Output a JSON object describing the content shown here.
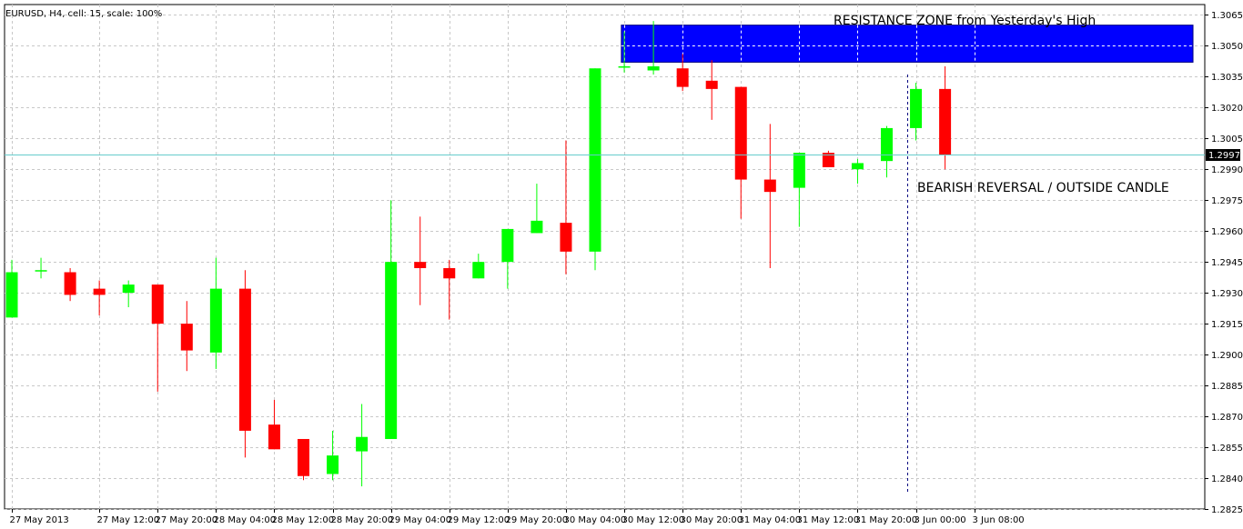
{
  "header": {
    "info": "EURUSD, H4, cell: 15, scale: 100%"
  },
  "colors": {
    "bull": "#00ff00",
    "bear": "#ff0000",
    "grid": "#c8c8c8",
    "zone_fill": "#0000ff",
    "zone_border": "#000080",
    "bid_line": "#66cccc",
    "price_tag_bg": "#000000",
    "price_tag_text": "#ffffff"
  },
  "chart_data": {
    "type": "candlestick",
    "symbol": "EURUSD",
    "timeframe": "H4",
    "ylim": [
      1.2825,
      1.307
    ],
    "y_ticks": [
      "1.3065",
      "1.3050",
      "1.3035",
      "1.3020",
      "1.3005",
      "1.2990",
      "1.2975",
      "1.2960",
      "1.2945",
      "1.2930",
      "1.2915",
      "1.2900",
      "1.2885",
      "1.2870",
      "1.2855",
      "1.2840",
      "1.2825"
    ],
    "x_ticks": [
      {
        "label": "27 May 2013",
        "index": 0
      },
      {
        "label": "27 May 12:00",
        "index": 3
      },
      {
        "label": "27 May 20:00",
        "index": 5
      },
      {
        "label": "28 May 04:00",
        "index": 7
      },
      {
        "label": "28 May 12:00",
        "index": 9
      },
      {
        "label": "28 May 20:00",
        "index": 11
      },
      {
        "label": "29 May 04:00",
        "index": 13
      },
      {
        "label": "29 May 12:00",
        "index": 15
      },
      {
        "label": "29 May 20:00",
        "index": 17
      },
      {
        "label": "30 May 04:00",
        "index": 19
      },
      {
        "label": "30 May 12:00",
        "index": 21
      },
      {
        "label": "30 May 20:00",
        "index": 23
      },
      {
        "label": "31 May 04:00",
        "index": 25
      },
      {
        "label": "31 May 12:00",
        "index": 27
      },
      {
        "label": "31 May 20:00",
        "index": 29
      },
      {
        "label": "3 Jun 00:00",
        "index": 31
      },
      {
        "label": "3 Jun 08:00",
        "index": 33
      }
    ],
    "candles": [
      {
        "o": 1.2918,
        "h": 1.2946,
        "l": 1.2918,
        "c": 1.294
      },
      {
        "o": 1.2941,
        "h": 1.2947,
        "l": 1.2937,
        "c": 1.2941
      },
      {
        "o": 1.294,
        "h": 1.2942,
        "l": 1.2926,
        "c": 1.2929
      },
      {
        "o": 1.2932,
        "h": 1.2936,
        "l": 1.2919,
        "c": 1.2929
      },
      {
        "o": 1.293,
        "h": 1.2936,
        "l": 1.2923,
        "c": 1.2934
      },
      {
        "o": 1.2934,
        "h": 1.2934,
        "l": 1.2882,
        "c": 1.2915
      },
      {
        "o": 1.2915,
        "h": 1.2926,
        "l": 1.2892,
        "c": 1.2902
      },
      {
        "o": 1.2901,
        "h": 1.2947,
        "l": 1.2893,
        "c": 1.2932
      },
      {
        "o": 1.2932,
        "h": 1.2941,
        "l": 1.285,
        "c": 1.2863
      },
      {
        "o": 1.2866,
        "h": 1.2878,
        "l": 1.2854,
        "c": 1.2854
      },
      {
        "o": 1.2859,
        "h": 1.2859,
        "l": 1.2839,
        "c": 1.2841
      },
      {
        "o": 1.2842,
        "h": 1.2863,
        "l": 1.2839,
        "c": 1.2851
      },
      {
        "o": 1.2853,
        "h": 1.2876,
        "l": 1.2836,
        "c": 1.286
      },
      {
        "o": 1.2859,
        "h": 1.2975,
        "l": 1.2859,
        "c": 1.2945
      },
      {
        "o": 1.2945,
        "h": 1.2967,
        "l": 1.2924,
        "c": 1.2942
      },
      {
        "o": 1.2942,
        "h": 1.2946,
        "l": 1.2917,
        "c": 1.2937
      },
      {
        "o": 1.2937,
        "h": 1.2949,
        "l": 1.2937,
        "c": 1.2945
      },
      {
        "o": 1.2945,
        "h": 1.2961,
        "l": 1.2932,
        "c": 1.2961
      },
      {
        "o": 1.2959,
        "h": 1.2983,
        "l": 1.2959,
        "c": 1.2965
      },
      {
        "o": 1.2964,
        "h": 1.3004,
        "l": 1.2939,
        "c": 1.295
      },
      {
        "o": 1.295,
        "h": 1.3039,
        "l": 1.2941,
        "c": 1.3039
      },
      {
        "o": 1.304,
        "h": 1.3057,
        "l": 1.3037,
        "c": 1.304
      },
      {
        "o": 1.3038,
        "h": 1.3062,
        "l": 1.3036,
        "c": 1.304
      },
      {
        "o": 1.3039,
        "h": 1.3046,
        "l": 1.3028,
        "c": 1.303
      },
      {
        "o": 1.3033,
        "h": 1.3043,
        "l": 1.3014,
        "c": 1.3029
      },
      {
        "o": 1.303,
        "h": 1.303,
        "l": 1.2966,
        "c": 1.2985
      },
      {
        "o": 1.2985,
        "h": 1.3012,
        "l": 1.2942,
        "c": 1.2979
      },
      {
        "o": 1.2981,
        "h": 1.2998,
        "l": 1.2962,
        "c": 1.2998
      },
      {
        "o": 1.2998,
        "h": 1.2999,
        "l": 1.2991,
        "c": 1.2991
      },
      {
        "o": 1.299,
        "h": 1.2995,
        "l": 1.2983,
        "c": 1.2993
      },
      {
        "o": 1.2994,
        "h": 1.3011,
        "l": 1.2986,
        "c": 1.301
      },
      {
        "o": 1.301,
        "h": 1.3032,
        "l": 1.3004,
        "c": 1.3029
      },
      {
        "o": 1.3029,
        "h": 1.304,
        "l": 1.299,
        "c": 1.2997
      }
    ],
    "current_price": 1.2997,
    "current_price_label": "1.2997",
    "resistance_zone": {
      "y_top": 1.306,
      "y_bottom": 1.3042,
      "x_start_index": 20.9,
      "x_end_index": 40.5
    },
    "marker_vline_index": 30.7,
    "annotations": [
      {
        "text": "RESISTANCE ZONE from Yesterday's High"
      },
      {
        "text": "BEARISH REVERSAL / OUTSIDE CANDLE"
      }
    ]
  }
}
